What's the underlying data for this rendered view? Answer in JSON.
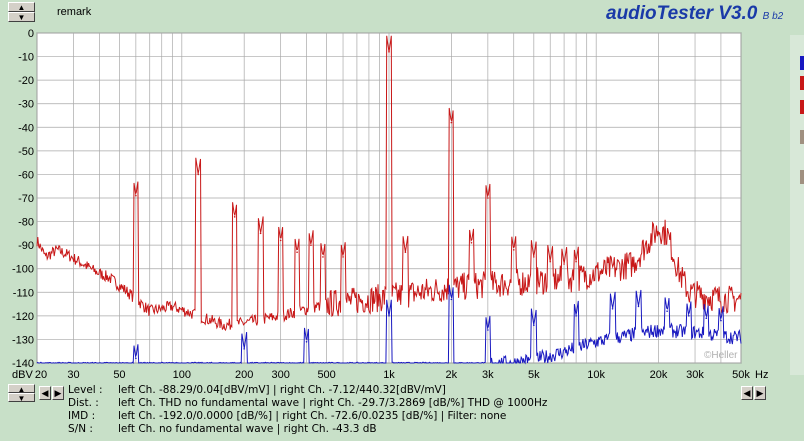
{
  "header": {
    "remark_label": "remark",
    "app_title": "audioTester V3.0",
    "app_version": "B b2"
  },
  "colors": {
    "left": "#1818c0",
    "right": "#c81818",
    "grid": "#a8a8a8",
    "bg": "#ffffff"
  },
  "info": {
    "level": {
      "label": "Level :",
      "text": "left Ch. -88.29/0.04[dBV/mV] | right Ch. -7.12/440.32[dBV/mV]"
    },
    "dist": {
      "label": "Dist. :",
      "text": "left Ch. THD no fundamental wave | right Ch. -29.7/3.2869 [dB/%] THD @ 1000Hz"
    },
    "imd": {
      "label": "IMD :",
      "text": "left Ch. -192.0/0.0000 [dB/%] | right Ch. -72.6/0.0235 [dB/%] |   Filter: none"
    },
    "sn": {
      "label": "S/N :",
      "text": "left Ch.  no fundamental wave | right Ch. -43.3 dB"
    }
  },
  "watermark": "©Heller",
  "chart_data": {
    "type": "line",
    "xscale": "log",
    "xlim": [
      20,
      50000
    ],
    "ylim": [
      -140,
      0
    ],
    "ylabel": "dBV",
    "xlabel": "Hz",
    "grid": true,
    "yticks": [
      0,
      -10,
      -20,
      -30,
      -40,
      -50,
      -60,
      -70,
      -80,
      -90,
      -100,
      -110,
      -120,
      -130,
      -140
    ],
    "xticks": [
      {
        "v": 20,
        "t": "20"
      },
      {
        "v": 30,
        "t": "30"
      },
      {
        "v": 50,
        "t": "50"
      },
      {
        "v": 100,
        "t": "100"
      },
      {
        "v": 200,
        "t": "200"
      },
      {
        "v": 300,
        "t": "300"
      },
      {
        "v": 500,
        "t": "500"
      },
      {
        "v": 1000,
        "t": "1k"
      },
      {
        "v": 2000,
        "t": "2k"
      },
      {
        "v": 3000,
        "t": "3k"
      },
      {
        "v": 5000,
        "t": "5k"
      },
      {
        "v": 10000,
        "t": "10k"
      },
      {
        "v": 20000,
        "t": "20k"
      },
      {
        "v": 30000,
        "t": "30k"
      },
      {
        "v": 50000,
        "t": "50k"
      }
    ],
    "series": [
      {
        "channel": "right",
        "floor": [
          [
            20,
            -88
          ],
          [
            22,
            -95
          ],
          [
            25,
            -92
          ],
          [
            28,
            -94
          ],
          [
            32,
            -97
          ],
          [
            38,
            -101
          ],
          [
            45,
            -104
          ],
          [
            55,
            -110
          ],
          [
            70,
            -118
          ],
          [
            90,
            -116
          ],
          [
            120,
            -120
          ],
          [
            160,
            -124
          ],
          [
            200,
            -123
          ],
          [
            300,
            -120
          ],
          [
            500,
            -115
          ],
          [
            1000,
            -112
          ],
          [
            2000,
            -108
          ],
          [
            4000,
            -106
          ],
          [
            8000,
            -104
          ],
          [
            12000,
            -100
          ],
          [
            15000,
            -98
          ],
          [
            18000,
            -88
          ],
          [
            20000,
            -83
          ],
          [
            22000,
            -85
          ],
          [
            25000,
            -101
          ],
          [
            28000,
            -110
          ],
          [
            35000,
            -112
          ],
          [
            45000,
            -113
          ]
        ],
        "peaks": [
          [
            60,
            -69
          ],
          [
            120,
            -60
          ],
          [
            180,
            -78
          ],
          [
            240,
            -85
          ],
          [
            300,
            -88
          ],
          [
            360,
            -93
          ],
          [
            420,
            -90
          ],
          [
            480,
            -95
          ],
          [
            600,
            -95
          ],
          [
            1000,
            -8
          ],
          [
            1200,
            -93
          ],
          [
            2000,
            -38
          ],
          [
            2500,
            -89
          ],
          [
            3000,
            -70
          ],
          [
            4000,
            -92
          ],
          [
            5000,
            -95
          ],
          [
            6000,
            -97
          ],
          [
            7000,
            -98
          ],
          [
            8000,
            -97
          ]
        ]
      },
      {
        "channel": "left",
        "floor": [
          [
            20,
            -140
          ],
          [
            4000,
            -140
          ],
          [
            6000,
            -137
          ],
          [
            10000,
            -131
          ],
          [
            15000,
            -128
          ],
          [
            20000,
            -126
          ],
          [
            30000,
            -127
          ],
          [
            45000,
            -129
          ]
        ],
        "peaks": [
          [
            60,
            -138
          ],
          [
            200,
            -134
          ],
          [
            400,
            -131
          ],
          [
            1000,
            -120
          ],
          [
            2000,
            -113
          ],
          [
            3000,
            -126
          ],
          [
            5000,
            -124
          ],
          [
            8000,
            -120
          ],
          [
            12000,
            -117
          ],
          [
            16000,
            -116
          ],
          [
            22000,
            -118
          ],
          [
            28000,
            -120
          ],
          [
            34000,
            -121
          ],
          [
            40000,
            -122
          ]
        ]
      }
    ]
  }
}
